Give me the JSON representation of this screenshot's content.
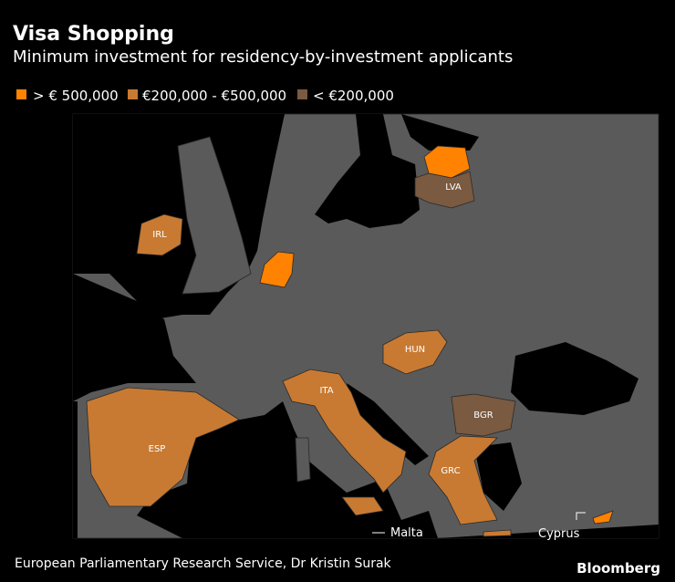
{
  "header": {
    "title": "Visa Shopping",
    "subtitle": "Minimum investment for residency-by-investment applicants"
  },
  "legend": [
    "> € 500,000",
    "€200,000 - €500,000",
    "< €200,000"
  ],
  "countries": [
    "LVA",
    "IRL",
    "HUN",
    "ITA",
    "ESP",
    "BGR",
    "GRC"
  ],
  "annotations": [
    "Malta",
    "Cyprus"
  ],
  "footer": {
    "source": "European Parliamentary Research Service, Dr Kristin Surak",
    "logo": "Bloomberg"
  }
}
